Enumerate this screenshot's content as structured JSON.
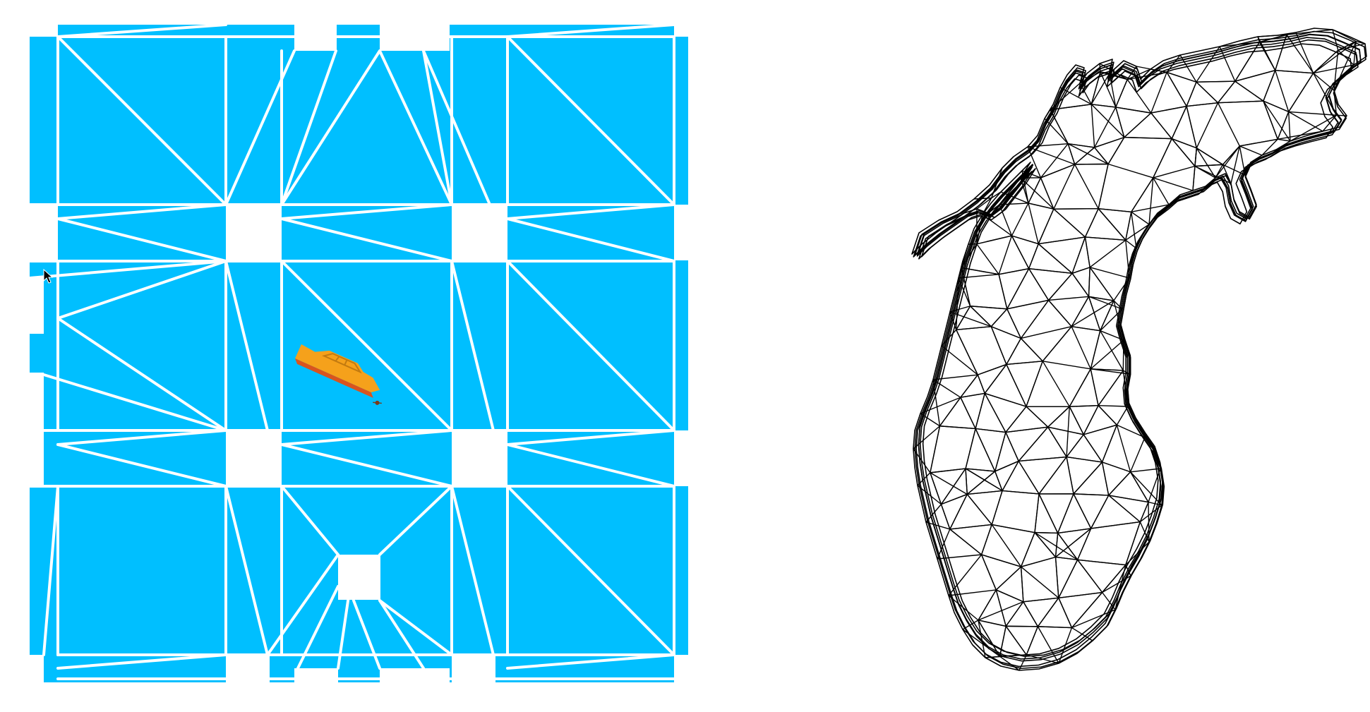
{
  "scene": {
    "water_color": "#00bfff",
    "mesh_line_color": "#ffffff",
    "boat_hull_color": "#f5a11b",
    "boat_stripe_color": "#d9541e",
    "lake_mesh_color": "#000000"
  },
  "icons": {
    "cursor": "mouse-pointer-icon",
    "boat": "boat-icon"
  }
}
